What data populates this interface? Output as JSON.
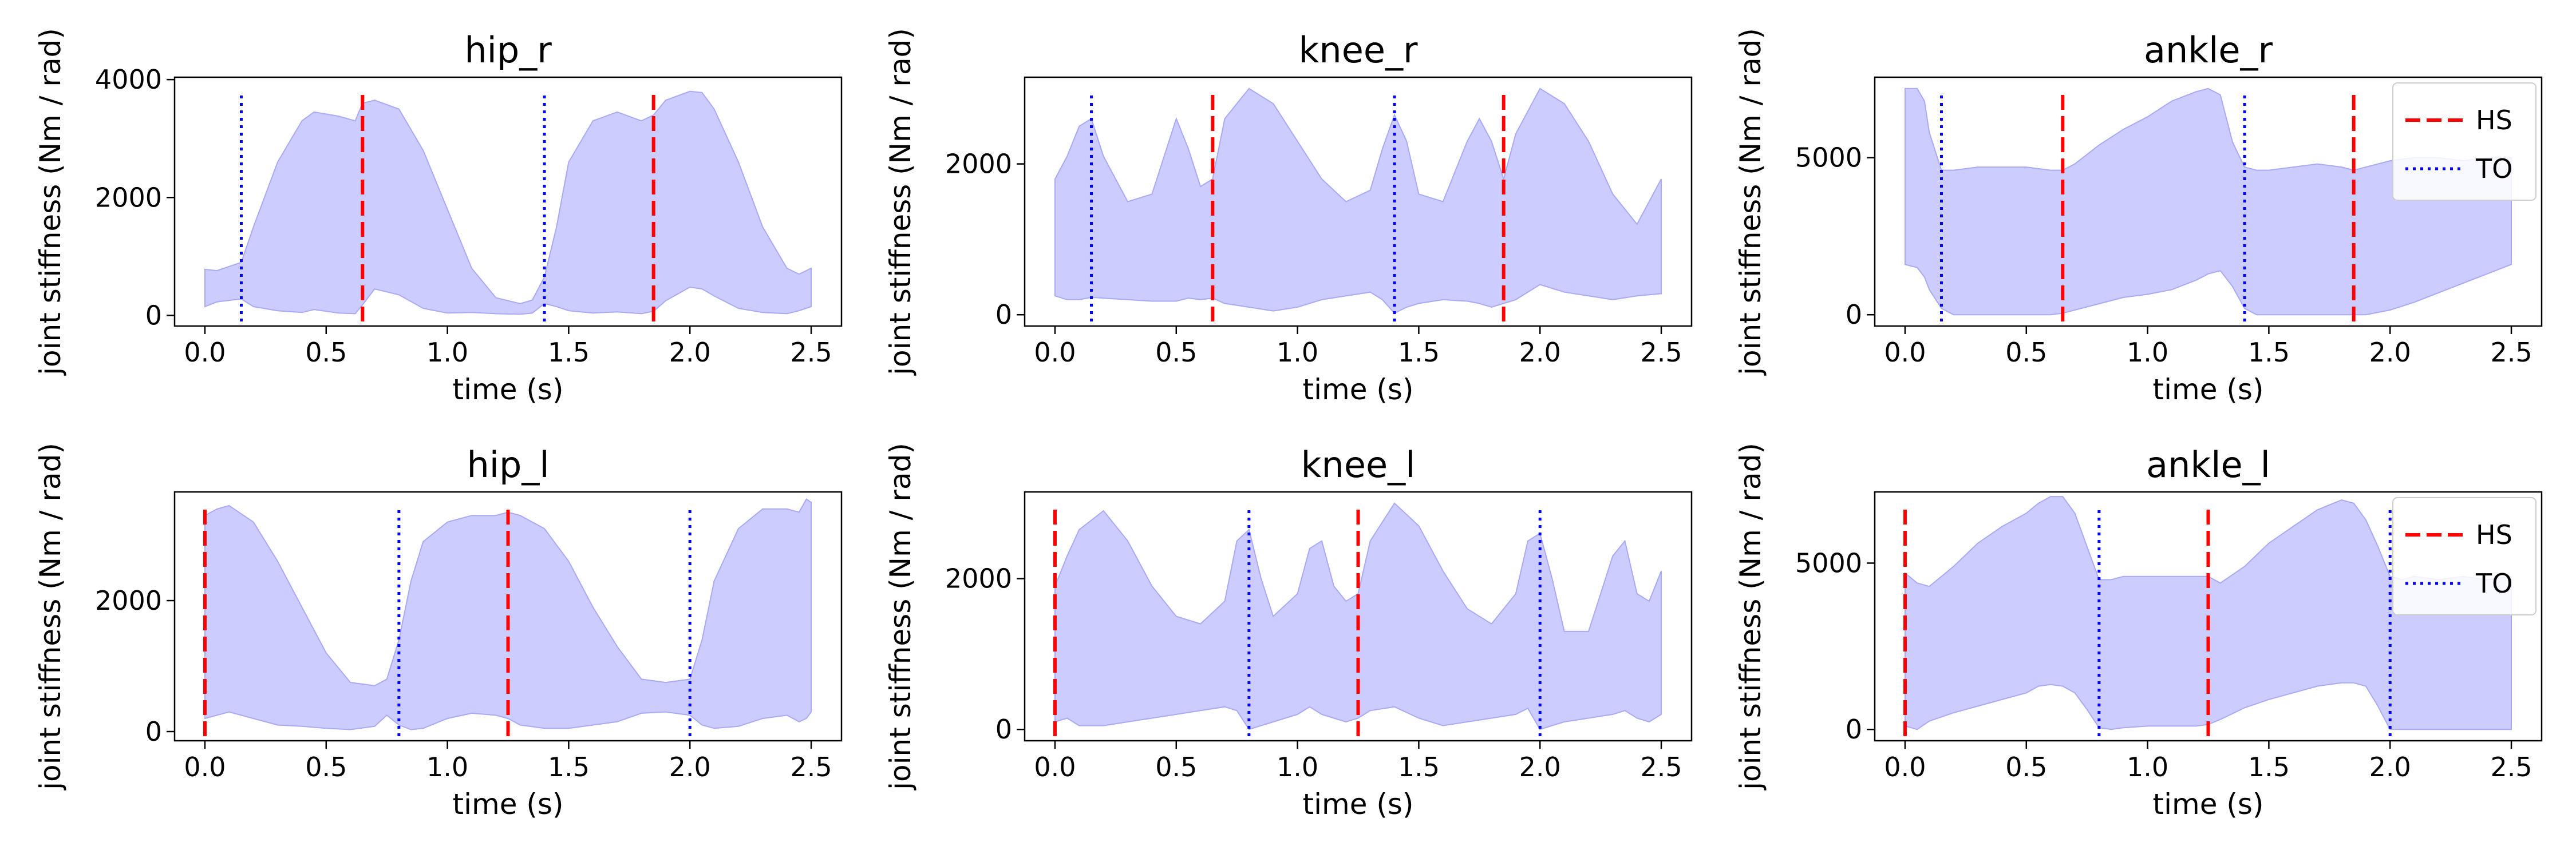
{
  "chart_data": [
    {
      "type": "area",
      "title": "hip_r",
      "xlabel": "time (s)",
      "ylabel": "joint stiffness (Nm / rad)",
      "xlim": [
        -0.125,
        2.625
      ],
      "ylim": [
        -180,
        4040
      ],
      "xticks": [
        0,
        0.5,
        1,
        1.5,
        2,
        2.5
      ],
      "xtick_labels": [
        "0.0",
        "0.5",
        "1.0",
        "1.5",
        "2.0",
        "2.5"
      ],
      "yticks": [
        0,
        2000,
        4000
      ],
      "ytick_labels": [
        "0",
        "2000",
        "4000"
      ],
      "fill_color": "#ccccff",
      "fill_edge_color": "#a9a9f5",
      "band": {
        "x": [
          0,
          0.05,
          0.15,
          0.2,
          0.3,
          0.4,
          0.45,
          0.55,
          0.62,
          0.65,
          0.7,
          0.8,
          0.9,
          1.0,
          1.1,
          1.2,
          1.3,
          1.35,
          1.4,
          1.45,
          1.5,
          1.6,
          1.7,
          1.8,
          1.85,
          1.9,
          2.0,
          2.05,
          2.1,
          2.2,
          2.3,
          2.4,
          2.45,
          2.5
        ],
        "upper": [
          780,
          760,
          900,
          1500,
          2600,
          3300,
          3450,
          3380,
          3300,
          3600,
          3650,
          3500,
          2800,
          1800,
          800,
          300,
          200,
          260,
          650,
          1500,
          2600,
          3300,
          3450,
          3300,
          3400,
          3650,
          3800,
          3780,
          3500,
          2600,
          1500,
          800,
          700,
          800
        ],
        "lower": [
          150,
          230,
          280,
          150,
          80,
          50,
          100,
          40,
          30,
          180,
          450,
          350,
          120,
          40,
          50,
          30,
          20,
          40,
          200,
          150,
          80,
          40,
          60,
          30,
          70,
          250,
          480,
          450,
          330,
          120,
          50,
          30,
          80,
          150
        ]
      },
      "events": [
        {
          "type": "HS",
          "x": 0.65
        },
        {
          "type": "HS",
          "x": 1.85
        },
        {
          "type": "TO",
          "x": 0.15
        },
        {
          "type": "TO",
          "x": 1.4
        }
      ],
      "legend": null
    },
    {
      "type": "area",
      "title": "knee_r",
      "xlabel": "time (s)",
      "ylabel": "joint stiffness (Nm / rad)",
      "xlim": [
        -0.125,
        2.625
      ],
      "ylim": [
        -150,
        3150
      ],
      "xticks": [
        0,
        0.5,
        1,
        1.5,
        2,
        2.5
      ],
      "xtick_labels": [
        "0.0",
        "0.5",
        "1.0",
        "1.5",
        "2.0",
        "2.5"
      ],
      "yticks": [
        0,
        2000
      ],
      "ytick_labels": [
        "0",
        "2000"
      ],
      "fill_color": "#ccccff",
      "fill_edge_color": "#a9a9f5",
      "band": {
        "x": [
          0,
          0.05,
          0.1,
          0.15,
          0.2,
          0.3,
          0.4,
          0.5,
          0.55,
          0.6,
          0.65,
          0.7,
          0.8,
          0.9,
          1.0,
          1.1,
          1.2,
          1.3,
          1.35,
          1.4,
          1.45,
          1.5,
          1.6,
          1.7,
          1.75,
          1.8,
          1.85,
          1.9,
          2.0,
          2.1,
          2.2,
          2.3,
          2.4,
          2.5
        ],
        "upper": [
          1800,
          2100,
          2500,
          2600,
          2100,
          1500,
          1600,
          2600,
          2200,
          1700,
          1800,
          2600,
          3000,
          2800,
          2300,
          1800,
          1500,
          1650,
          2200,
          2650,
          2300,
          1600,
          1500,
          2300,
          2600,
          2300,
          1800,
          2400,
          3000,
          2800,
          2300,
          1600,
          1200,
          1800
        ],
        "lower": [
          250,
          200,
          200,
          230,
          220,
          200,
          180,
          180,
          220,
          200,
          220,
          150,
          100,
          50,
          100,
          200,
          250,
          300,
          200,
          20,
          100,
          150,
          200,
          180,
          150,
          100,
          150,
          200,
          400,
          300,
          250,
          200,
          250,
          280
        ]
      },
      "events": [
        {
          "type": "HS",
          "x": 0.65
        },
        {
          "type": "HS",
          "x": 1.85
        },
        {
          "type": "TO",
          "x": 0.15
        },
        {
          "type": "TO",
          "x": 1.4
        }
      ],
      "legend": null
    },
    {
      "type": "area",
      "title": "ankle_r",
      "xlabel": "time (s)",
      "ylabel": "joint stiffness (Nm / rad)",
      "xlim": [
        -0.125,
        2.625
      ],
      "ylim": [
        -360,
        7560
      ],
      "xticks": [
        0,
        0.5,
        1,
        1.5,
        2,
        2.5
      ],
      "xtick_labels": [
        "0.0",
        "0.5",
        "1.0",
        "1.5",
        "2.0",
        "2.5"
      ],
      "yticks": [
        0,
        5000
      ],
      "ytick_labels": [
        "0",
        "5000"
      ],
      "fill_color": "#ccccff",
      "fill_edge_color": "#a9a9f5",
      "band": {
        "x": [
          0,
          0.05,
          0.08,
          0.1,
          0.15,
          0.2,
          0.3,
          0.4,
          0.5,
          0.6,
          0.65,
          0.7,
          0.8,
          0.9,
          1.0,
          1.1,
          1.2,
          1.25,
          1.3,
          1.35,
          1.4,
          1.45,
          1.5,
          1.6,
          1.7,
          1.8,
          1.85,
          1.9,
          2.0,
          2.1,
          2.2,
          2.3,
          2.4,
          2.5
        ],
        "upper": [
          7200,
          7200,
          6800,
          5800,
          4600,
          4600,
          4700,
          4700,
          4700,
          4600,
          4600,
          4800,
          5400,
          5900,
          6300,
          6800,
          7100,
          7200,
          7000,
          5500,
          4700,
          4600,
          4600,
          4700,
          4800,
          4700,
          4600,
          4700,
          4900,
          5000,
          5000,
          4900,
          5000,
          5000
        ],
        "lower": [
          1600,
          1500,
          1200,
          800,
          200,
          0,
          0,
          0,
          0,
          0,
          50,
          150,
          350,
          550,
          650,
          800,
          1100,
          1300,
          1400,
          900,
          200,
          0,
          0,
          0,
          0,
          0,
          0,
          0,
          150,
          400,
          700,
          1000,
          1300,
          1600
        ]
      },
      "events": [
        {
          "type": "HS",
          "x": 0.65
        },
        {
          "type": "HS",
          "x": 1.85
        },
        {
          "type": "TO",
          "x": 0.15
        },
        {
          "type": "TO",
          "x": 1.4
        }
      ],
      "legend": {
        "placement": "upper right",
        "entries": [
          {
            "type": "HS",
            "label": "HS"
          },
          {
            "type": "TO",
            "label": "TO"
          }
        ]
      }
    },
    {
      "type": "area",
      "title": "hip_l",
      "xlabel": "time (s)",
      "ylabel": "joint stiffness (Nm / rad)",
      "xlim": [
        -0.125,
        2.625
      ],
      "ylim": [
        -140,
        3660
      ],
      "xticks": [
        0,
        0.5,
        1,
        1.5,
        2,
        2.5
      ],
      "xtick_labels": [
        "0.0",
        "0.5",
        "1.0",
        "1.5",
        "2.0",
        "2.5"
      ],
      "yticks": [
        0,
        2000
      ],
      "ytick_labels": [
        "0",
        "2000"
      ],
      "fill_color": "#ccccff",
      "fill_edge_color": "#a9a9f5",
      "band": {
        "x": [
          0,
          0.05,
          0.1,
          0.2,
          0.3,
          0.4,
          0.5,
          0.6,
          0.7,
          0.75,
          0.8,
          0.85,
          0.9,
          1.0,
          1.1,
          1.2,
          1.25,
          1.3,
          1.4,
          1.5,
          1.6,
          1.7,
          1.8,
          1.9,
          2.0,
          2.05,
          2.1,
          2.2,
          2.3,
          2.4,
          2.45,
          2.48,
          2.5
        ],
        "upper": [
          3300,
          3400,
          3450,
          3200,
          2600,
          1900,
          1200,
          750,
          700,
          800,
          1400,
          2300,
          2900,
          3200,
          3300,
          3300,
          3350,
          3300,
          3100,
          2600,
          1900,
          1300,
          800,
          750,
          800,
          1400,
          2300,
          3100,
          3400,
          3400,
          3350,
          3550,
          3500
        ],
        "lower": [
          200,
          250,
          300,
          200,
          100,
          80,
          50,
          30,
          80,
          250,
          100,
          30,
          50,
          200,
          280,
          250,
          200,
          100,
          50,
          50,
          100,
          150,
          280,
          300,
          250,
          100,
          50,
          80,
          200,
          250,
          150,
          200,
          300
        ]
      },
      "events": [
        {
          "type": "HS",
          "x": 0.0
        },
        {
          "type": "HS",
          "x": 1.25
        },
        {
          "type": "TO",
          "x": 0.8
        },
        {
          "type": "TO",
          "x": 2.0
        }
      ],
      "legend": null
    },
    {
      "type": "area",
      "title": "knee_l",
      "xlabel": "time (s)",
      "ylabel": "joint stiffness (Nm / rad)",
      "xlim": [
        -0.125,
        2.625
      ],
      "ylim": [
        -150,
        3150
      ],
      "xticks": [
        0,
        0.5,
        1,
        1.5,
        2,
        2.5
      ],
      "xtick_labels": [
        "0.0",
        "0.5",
        "1.0",
        "1.5",
        "2.0",
        "2.5"
      ],
      "yticks": [
        0,
        2000
      ],
      "ytick_labels": [
        "0",
        "2000"
      ],
      "fill_color": "#ccccff",
      "fill_edge_color": "#a9a9f5",
      "band": {
        "x": [
          0,
          0.05,
          0.1,
          0.2,
          0.3,
          0.4,
          0.5,
          0.6,
          0.7,
          0.75,
          0.8,
          0.85,
          0.9,
          1.0,
          1.05,
          1.1,
          1.15,
          1.2,
          1.25,
          1.3,
          1.4,
          1.5,
          1.6,
          1.7,
          1.8,
          1.9,
          1.95,
          2.0,
          2.05,
          2.1,
          2.2,
          2.3,
          2.35,
          2.4,
          2.45,
          2.5
        ],
        "upper": [
          1900,
          2300,
          2650,
          2900,
          2500,
          1900,
          1500,
          1400,
          1700,
          2500,
          2650,
          2000,
          1500,
          1800,
          2400,
          2500,
          1900,
          1700,
          1800,
          2500,
          3000,
          2700,
          2100,
          1600,
          1400,
          1800,
          2500,
          2600,
          2000,
          1300,
          1300,
          2300,
          2500,
          1800,
          1700,
          2100
        ],
        "lower": [
          100,
          150,
          50,
          50,
          100,
          150,
          200,
          250,
          300,
          250,
          0,
          50,
          100,
          200,
          300,
          200,
          150,
          100,
          150,
          250,
          300,
          150,
          50,
          100,
          150,
          200,
          280,
          0,
          50,
          100,
          150,
          200,
          250,
          150,
          100,
          200
        ]
      },
      "events": [
        {
          "type": "HS",
          "x": 0.0
        },
        {
          "type": "HS",
          "x": 1.25
        },
        {
          "type": "TO",
          "x": 0.8
        },
        {
          "type": "TO",
          "x": 2.0
        }
      ],
      "legend": null
    },
    {
      "type": "area",
      "title": "ankle_l",
      "xlabel": "time (s)",
      "ylabel": "joint stiffness (Nm / rad)",
      "xlim": [
        -0.125,
        2.625
      ],
      "ylim": [
        -340,
        7140
      ],
      "xticks": [
        0,
        0.5,
        1,
        1.5,
        2,
        2.5
      ],
      "xtick_labels": [
        "0.0",
        "0.5",
        "1.0",
        "1.5",
        "2.0",
        "2.5"
      ],
      "yticks": [
        0,
        5000
      ],
      "ytick_labels": [
        "0",
        "5000"
      ],
      "fill_color": "#ccccff",
      "fill_edge_color": "#a9a9f5",
      "band": {
        "x": [
          0,
          0.05,
          0.1,
          0.2,
          0.3,
          0.4,
          0.5,
          0.55,
          0.6,
          0.65,
          0.7,
          0.75,
          0.8,
          0.85,
          0.9,
          1.0,
          1.1,
          1.2,
          1.25,
          1.3,
          1.4,
          1.5,
          1.6,
          1.7,
          1.8,
          1.85,
          1.9,
          1.95,
          2.0,
          2.05,
          2.1,
          2.2,
          2.3,
          2.4,
          2.5
        ],
        "upper": [
          4700,
          4400,
          4300,
          4900,
          5600,
          6100,
          6500,
          6800,
          7000,
          7000,
          6500,
          5500,
          4500,
          4500,
          4600,
          4600,
          4600,
          4600,
          4600,
          4400,
          4900,
          5600,
          6100,
          6600,
          6900,
          6800,
          6300,
          5500,
          4600,
          4500,
          4600,
          4500,
          4600,
          4500,
          4600
        ],
        "lower": [
          100,
          0,
          250,
          500,
          700,
          900,
          1100,
          1300,
          1350,
          1300,
          1100,
          600,
          50,
          0,
          50,
          100,
          100,
          100,
          150,
          300,
          650,
          900,
          1100,
          1300,
          1400,
          1400,
          1300,
          700,
          0,
          0,
          0,
          0,
          0,
          0,
          0
        ]
      },
      "events": [
        {
          "type": "HS",
          "x": 0.0
        },
        {
          "type": "HS",
          "x": 1.25
        },
        {
          "type": "TO",
          "x": 0.8
        },
        {
          "type": "TO",
          "x": 2.0
        }
      ],
      "legend": {
        "placement": "upper right",
        "entries": [
          {
            "type": "HS",
            "label": "HS"
          },
          {
            "type": "TO",
            "label": "TO"
          }
        ]
      }
    }
  ],
  "event_styles": {
    "HS": {
      "color": "#ff0000",
      "dash": "dashed"
    },
    "TO": {
      "color": "#0000ff",
      "dash": "dotted"
    }
  }
}
